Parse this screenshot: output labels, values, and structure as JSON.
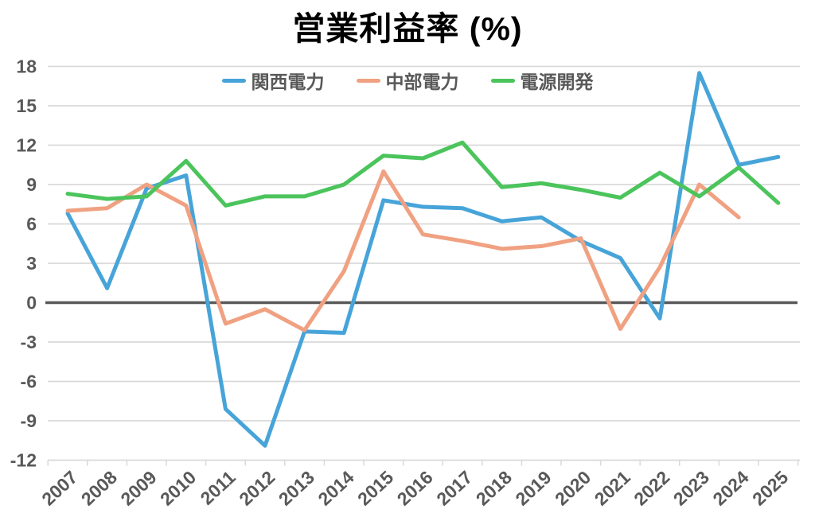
{
  "title": "営業利益率 (%)",
  "chart_data": {
    "type": "line",
    "x": [
      "2007",
      "2008",
      "2009",
      "2010",
      "2011",
      "2012",
      "2013",
      "2014",
      "2015",
      "2016",
      "2017",
      "2018",
      "2019",
      "2020",
      "2021",
      "2022",
      "2023",
      "2024",
      "2025"
    ],
    "series": [
      {
        "key": "kansai-denryoku",
        "name": "関西電力",
        "color": "#47A4D9",
        "values": [
          6.8,
          1.1,
          8.7,
          9.7,
          -8.1,
          -10.9,
          -2.2,
          -2.3,
          7.8,
          7.3,
          7.2,
          6.2,
          6.5,
          4.7,
          3.4,
          -1.2,
          17.5,
          10.5,
          11.1
        ]
      },
      {
        "key": "chubu-denryoku",
        "name": "中部電力",
        "color": "#F0A181",
        "values": [
          7.0,
          7.2,
          9.0,
          7.4,
          -1.6,
          -0.5,
          -2.1,
          2.4,
          10.0,
          5.2,
          4.7,
          4.1,
          4.3,
          4.9,
          -2.0,
          2.7,
          9.0,
          6.5,
          null
        ]
      },
      {
        "key": "dengen-kaihatsu",
        "name": "電源開発",
        "color": "#4BC45C",
        "values": [
          8.3,
          7.9,
          8.1,
          10.8,
          7.4,
          8.1,
          8.1,
          9.0,
          11.2,
          11.0,
          12.2,
          8.8,
          9.1,
          8.6,
          8.0,
          9.9,
          8.1,
          10.3,
          7.6
        ]
      }
    ],
    "ylim": [
      -12,
      18
    ],
    "y_ticks": [
      18,
      15,
      12,
      9,
      6,
      3,
      0,
      -3,
      -6,
      -9,
      -12
    ],
    "xlabel": "",
    "ylabel": "",
    "grid": true,
    "zero_line": true,
    "legend_position": "top-center"
  },
  "colors": {
    "background": "#FFFFFF",
    "title": "#000000",
    "tick_label": "#595959",
    "grid": "#D9D9D9",
    "zero_line": "#595959"
  }
}
